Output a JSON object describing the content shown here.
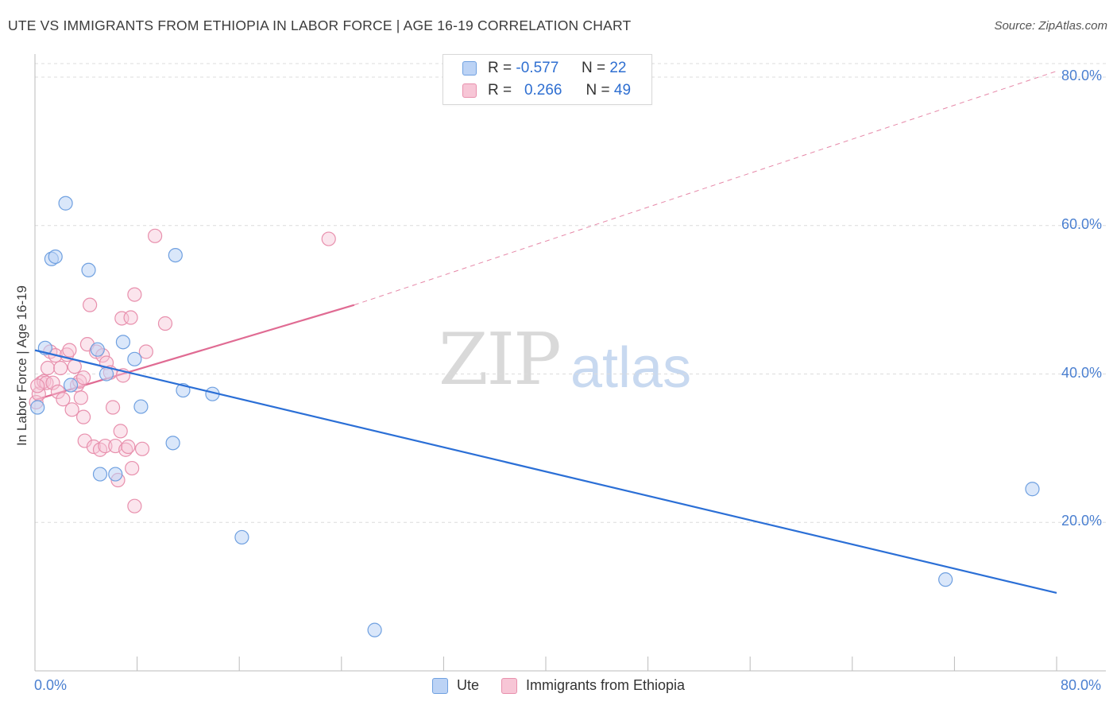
{
  "title": "UTE VS IMMIGRANTS FROM ETHIOPIA IN LABOR FORCE | AGE 16-19 CORRELATION CHART",
  "source": "Source: ZipAtlas.com",
  "watermark": {
    "zip": "ZIP",
    "atlas": "atlas"
  },
  "legend": {
    "ute": {
      "r_label": "R =",
      "r_value": "-0.577",
      "n_label": "N =",
      "n_value": "22"
    },
    "eth": {
      "r_label": "R =",
      "r_value": "0.266",
      "n_label": "N =",
      "n_value": "49"
    }
  },
  "colors": {
    "ute": "#6fa0e0",
    "ute_fill": "#bcd3f5",
    "ute_line": "#2b6fd6",
    "eth": "#e890ad",
    "eth_fill": "#f7c6d6",
    "eth_line": "#e06b93"
  },
  "chart_data": {
    "type": "scatter",
    "title": "UTE VS IMMIGRANTS FROM ETHIOPIA IN LABOR FORCE | AGE 16-19 CORRELATION CHART",
    "xlabel": "",
    "ylabel": "In Labor Force | Age 16-19",
    "xlim": [
      0,
      80
    ],
    "ylim": [
      0,
      82
    ],
    "x_tick_labels": [
      "0.0%",
      "80.0%"
    ],
    "y_ticks": [
      20,
      40,
      60,
      80
    ],
    "y_tick_labels": [
      "20.0%",
      "40.0%",
      "60.0%",
      "80.0%"
    ],
    "grid": true,
    "series": [
      {
        "name": "Ute",
        "points": [
          [
            0.2,
            35.5
          ],
          [
            0.8,
            43.5
          ],
          [
            1.3,
            55.5
          ],
          [
            1.6,
            55.8
          ],
          [
            2.4,
            63.0
          ],
          [
            2.8,
            38.5
          ],
          [
            4.2,
            54.0
          ],
          [
            4.9,
            43.3
          ],
          [
            5.1,
            26.5
          ],
          [
            5.6,
            40.0
          ],
          [
            6.3,
            26.5
          ],
          [
            6.9,
            44.3
          ],
          [
            7.8,
            42.0
          ],
          [
            8.3,
            35.6
          ],
          [
            10.8,
            30.7
          ],
          [
            11.0,
            56.0
          ],
          [
            11.6,
            37.8
          ],
          [
            13.9,
            37.3
          ],
          [
            16.2,
            18.0
          ],
          [
            26.6,
            5.5
          ],
          [
            71.3,
            12.3
          ],
          [
            78.1,
            24.5
          ]
        ],
        "trend": {
          "x": [
            0,
            80
          ],
          "y": [
            43.2,
            10.5
          ],
          "style": "solid"
        }
      },
      {
        "name": "Immigrants from Ethiopia",
        "points": [
          [
            0.1,
            36.2
          ],
          [
            0.3,
            37.3
          ],
          [
            0.5,
            38.8
          ],
          [
            0.7,
            39.0
          ],
          [
            0.9,
            38.8
          ],
          [
            1.0,
            40.8
          ],
          [
            1.2,
            43.0
          ],
          [
            1.4,
            38.8
          ],
          [
            1.6,
            42.5
          ],
          [
            1.8,
            37.6
          ],
          [
            2.0,
            40.8
          ],
          [
            2.2,
            36.6
          ],
          [
            2.5,
            42.6
          ],
          [
            2.7,
            43.2
          ],
          [
            2.9,
            35.2
          ],
          [
            3.1,
            41.0
          ],
          [
            3.3,
            38.5
          ],
          [
            3.5,
            39.0
          ],
          [
            3.6,
            36.8
          ],
          [
            3.8,
            39.5
          ],
          [
            3.8,
            34.2
          ],
          [
            3.9,
            31.0
          ],
          [
            4.1,
            44.0
          ],
          [
            4.3,
            49.3
          ],
          [
            4.6,
            30.2
          ],
          [
            4.8,
            43.0
          ],
          [
            5.1,
            29.8
          ],
          [
            5.3,
            42.5
          ],
          [
            5.5,
            30.3
          ],
          [
            5.6,
            41.5
          ],
          [
            5.9,
            40.2
          ],
          [
            6.1,
            35.5
          ],
          [
            6.3,
            30.3
          ],
          [
            6.5,
            25.7
          ],
          [
            6.7,
            32.3
          ],
          [
            6.8,
            47.5
          ],
          [
            6.9,
            39.8
          ],
          [
            7.1,
            29.8
          ],
          [
            7.3,
            30.2
          ],
          [
            7.5,
            47.6
          ],
          [
            7.6,
            27.3
          ],
          [
            7.8,
            50.7
          ],
          [
            7.8,
            22.2
          ],
          [
            8.4,
            29.9
          ],
          [
            8.7,
            43.0
          ],
          [
            9.4,
            58.6
          ],
          [
            10.2,
            46.8
          ],
          [
            23.0,
            58.2
          ],
          [
            0.2,
            38.4
          ]
        ],
        "trend": {
          "x": [
            0,
            25,
            80
          ],
          "y": [
            36.5,
            49.3,
            80.8
          ],
          "style": "solid-then-dashed",
          "solid_until_x": 25
        }
      }
    ]
  },
  "bottom_legend": {
    "ute_label": "Ute",
    "eth_label": "Immigrants from Ethiopia"
  }
}
